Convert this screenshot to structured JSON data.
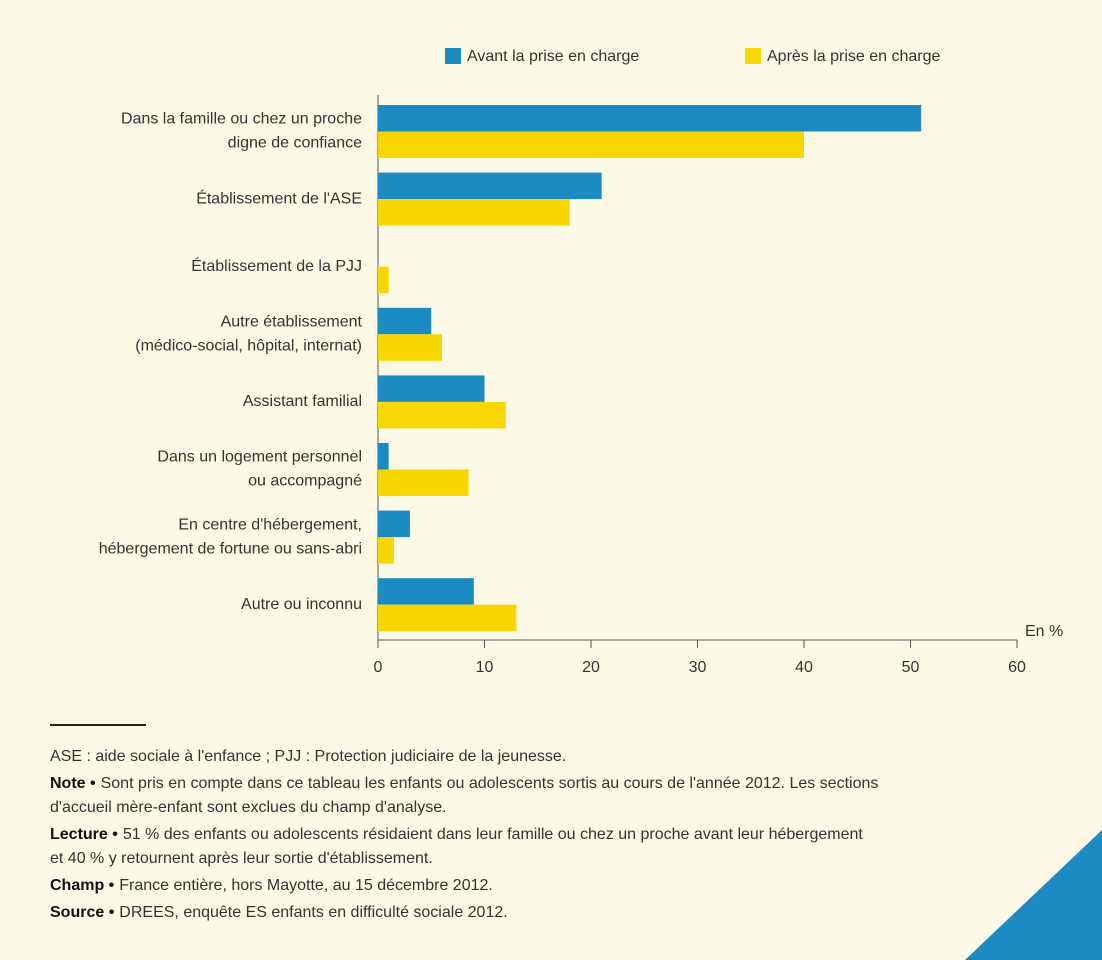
{
  "chart_data": {
    "type": "barh",
    "categories": [
      [
        "Dans la famille ou chez un proche",
        "digne de confiance"
      ],
      [
        "Établissement de l'ASE"
      ],
      [
        "Établissement de la PJJ"
      ],
      [
        "Autre établissement",
        "(médico-social, hôpital, internat)"
      ],
      [
        "Assistant familial"
      ],
      [
        "Dans un logement personnel",
        "ou accompagné"
      ],
      [
        "En centre d'hébergement,",
        "hébergement de fortune ou sans-abri"
      ],
      [
        "Autre ou inconnu"
      ]
    ],
    "series": [
      {
        "name": "Avant la prise en charge",
        "color": "#1b8bc1",
        "values": [
          51,
          21,
          0,
          5,
          10,
          1,
          3,
          9
        ]
      },
      {
        "name": "Après la prise en charge",
        "color": "#f8d700",
        "values": [
          40,
          18,
          1,
          6,
          12,
          8.5,
          1.5,
          13
        ]
      }
    ],
    "xlim": [
      0,
      60
    ],
    "xticks": [
      0,
      10,
      20,
      30,
      40,
      50,
      60
    ],
    "xlabel": "En %",
    "grid": false,
    "legend": "top",
    "notes": [
      {
        "label": "",
        "lines": [
          "ASE : aide sociale à l'enfance ; PJJ : Protection judiciaire de la jeunesse."
        ]
      },
      {
        "label": "Note •",
        "lines": [
          "Sont pris en compte dans ce tableau les enfants ou adolescents sortis au cours de l'année 2012. Les sections",
          "d'accueil mère-enfant sont exclues du champ d'analyse."
        ]
      },
      {
        "label": "Lecture •",
        "lines": [
          "51 % des enfants ou adolescents résidaient dans leur famille ou chez un proche avant leur hébergement",
          "et 40 % y retournent après leur sortie d'établissement."
        ]
      },
      {
        "label": "Champ •",
        "lines": [
          "France entière, hors Mayotte, au 15 décembre 2012."
        ]
      },
      {
        "label": "Source •",
        "lines": [
          "DREES, enquête ES enfants en difficulté sociale 2012."
        ]
      }
    ]
  }
}
